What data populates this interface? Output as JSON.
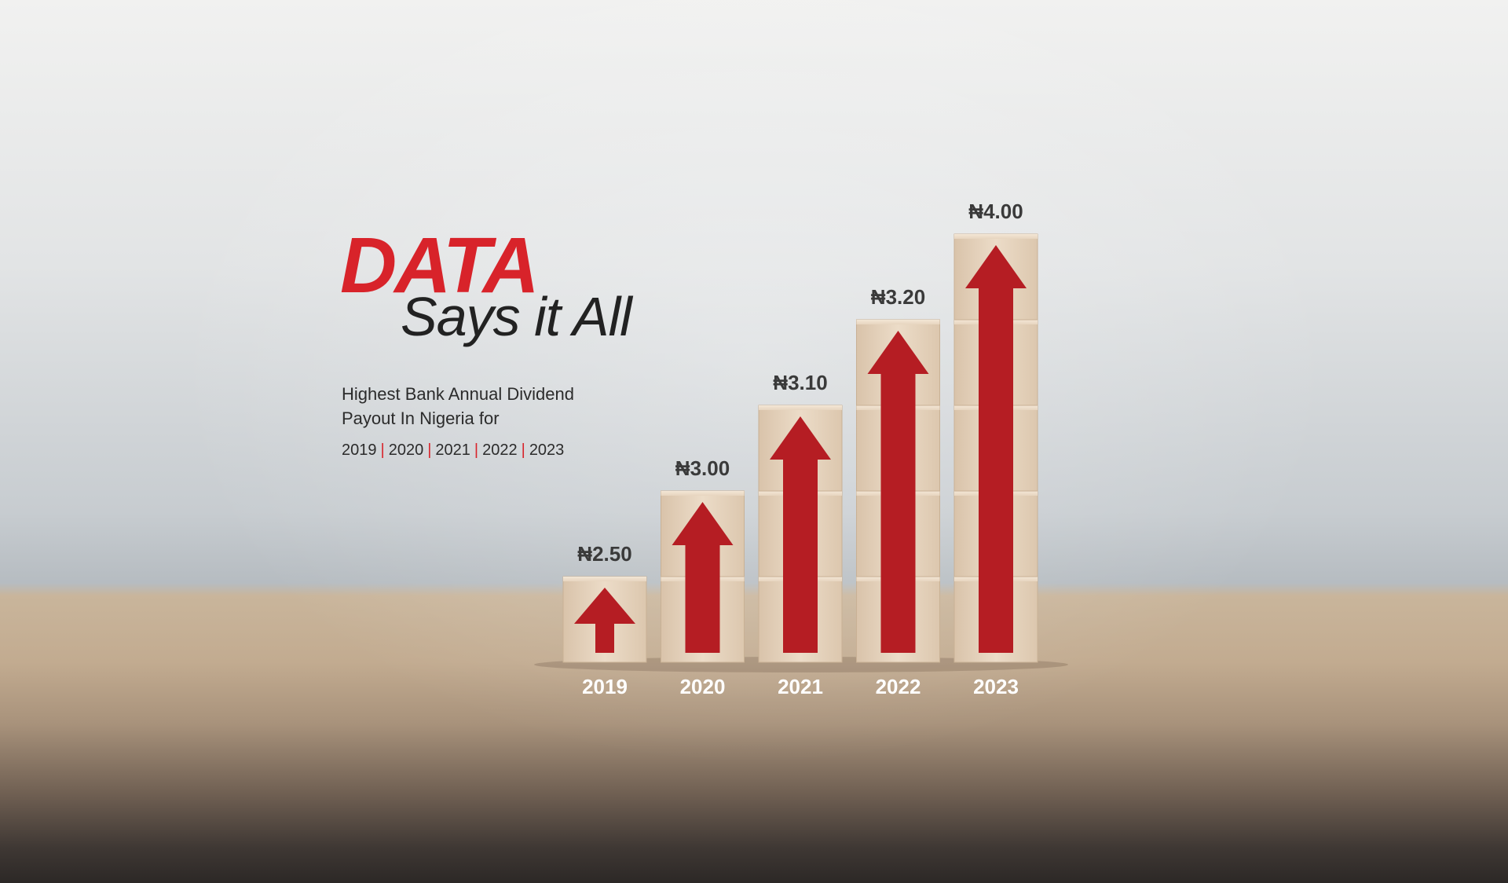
{
  "headline": {
    "big": "DATA",
    "tagline": "Says it All"
  },
  "subtitle_lines": [
    "Highest Bank Annual Dividend",
    "Payout In Nigeria for"
  ],
  "year_list": [
    "2019",
    "2020",
    "2021",
    "2022",
    "2023"
  ],
  "colors": {
    "accent": "#d8232a",
    "arrow": "#b51d23",
    "block": "#e6d3bd",
    "value_text": "#3a3a3a",
    "year_text": "#ffffff"
  },
  "chart_data": {
    "type": "bar",
    "categories": [
      "2019",
      "2020",
      "2021",
      "2022",
      "2023"
    ],
    "values": [
      2.5,
      3.0,
      3.1,
      3.2,
      4.0
    ],
    "value_labels": [
      "₦2.50",
      "₦3.00",
      "₦3.10",
      "₦3.20",
      "₦4.00"
    ],
    "blocks_per_bar": [
      1,
      2,
      3,
      4,
      5
    ],
    "unit": "₦",
    "title": "",
    "xlabel": "",
    "ylabel": "",
    "grid": false,
    "legend": "none"
  }
}
